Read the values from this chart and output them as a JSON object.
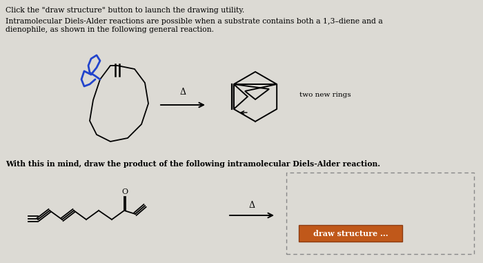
{
  "bg_color": "#dcdad4",
  "text_color": "#000000",
  "line1": "Click the \"draw structure\" button to launch the drawing utility.",
  "line2_part1": "Intramolecular Diels-Alder reactions are possible when a substrate contains both a 1,3–diene and a",
  "line2_part2": "dienophile, as shown in the following general reaction.",
  "line3": "With this in mind, draw the product of the following intramolecular Diels-Alder reaction.",
  "two_new_rings": "two new rings",
  "draw_structure": "draw structure ...",
  "delta_symbol": "Δ",
  "diene_color": "#2244cc",
  "draw_btn_bg": "#c0581a",
  "draw_btn_fg": "#ffffff",
  "dashed_box_color": "#888888",
  "black": "#000000"
}
